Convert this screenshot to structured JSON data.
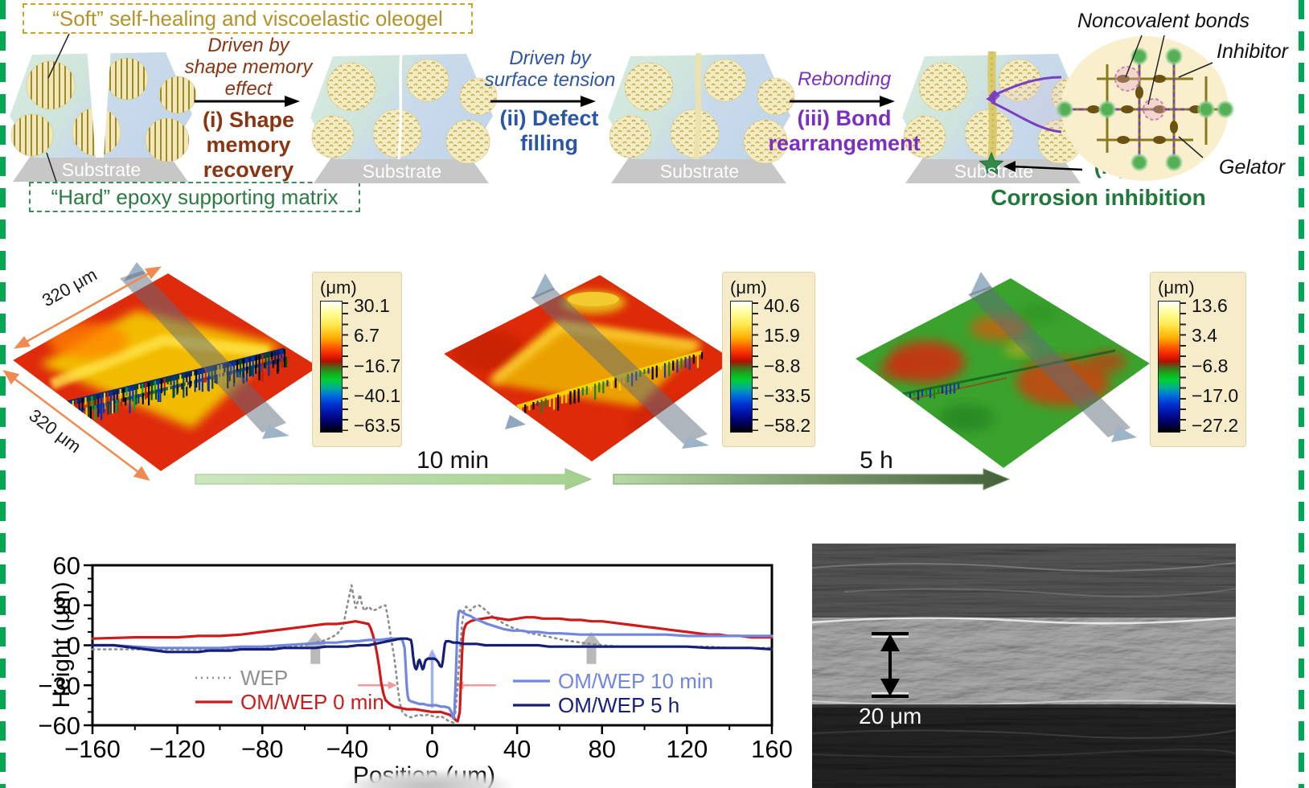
{
  "figure": {
    "border_color": "#00a651"
  },
  "schematic": {
    "soft_label": "“Soft” self-healing and viscoelastic oleogel",
    "hard_label": "“Hard” epoxy supporting matrix",
    "substrate_label": "Substrate",
    "steps": [
      {
        "driver": "Driven by shape memory effect",
        "name": "(i) Shape memory recovery",
        "color": "#8a3512"
      },
      {
        "driver": "Driven by surface tension",
        "name": "(ii) Defect filling",
        "color": "#2b55a5"
      },
      {
        "driver": "Rebonding",
        "name": "(iii) Bond rearrangement",
        "color": "#7a2fc0"
      }
    ],
    "step4_num": "(iv)",
    "step4_name": "Corrosion inhibition",
    "inset": {
      "noncovalent": "Noncovalent bonds",
      "inhibitor": "Inhibitor",
      "gelator": "Gelator"
    }
  },
  "profilometry": {
    "dimension_labels": [
      "320 μm",
      "320 μm"
    ],
    "unit": "(μm)",
    "colorbars": [
      {
        "ticks": [
          "30.1",
          "6.7",
          "−16.7",
          "−40.1",
          "−63.5"
        ]
      },
      {
        "ticks": [
          "40.6",
          "15.9",
          "−8.8",
          "−33.5",
          "−58.2"
        ]
      },
      {
        "ticks": [
          "13.6",
          "3.4",
          "−6.8",
          "−17.0",
          "−27.2"
        ]
      }
    ],
    "time_arrows": [
      "10 min",
      "5 h"
    ]
  },
  "sem": {
    "scale_label": "20 μm"
  },
  "chart_data": {
    "type": "line",
    "title": "",
    "xlabel": "Position (μm)",
    "ylabel": "Height (μm)",
    "xlim": [
      -160,
      160
    ],
    "ylim": [
      -60,
      60
    ],
    "xticks": [
      -160,
      -120,
      -80,
      -40,
      0,
      40,
      80,
      120,
      160
    ],
    "yticks": [
      -60,
      -30,
      0,
      30,
      60
    ],
    "x_minor_step": 20,
    "y_minor_step": 10,
    "grid": false,
    "legend_position": "inside-bottom",
    "series": [
      {
        "name": "WEP",
        "color": "#8c8c8c",
        "style": "dotted",
        "points": [
          [
            -160,
            -3
          ],
          [
            -140,
            -3
          ],
          [
            -120,
            -3
          ],
          [
            -100,
            -3
          ],
          [
            -80,
            -2
          ],
          [
            -70,
            -1
          ],
          [
            -60,
            0
          ],
          [
            -55,
            2
          ],
          [
            -50,
            4
          ],
          [
            -45,
            8
          ],
          [
            -42,
            14
          ],
          [
            -40,
            30
          ],
          [
            -38,
            45
          ],
          [
            -37,
            36
          ],
          [
            -36,
            28
          ],
          [
            -35,
            33
          ],
          [
            -34,
            38
          ],
          [
            -33,
            30
          ],
          [
            -32,
            26
          ],
          [
            -30,
            29
          ],
          [
            -28,
            26
          ],
          [
            -26,
            27
          ],
          [
            -24,
            29
          ],
          [
            -22,
            30
          ],
          [
            -21,
            22
          ],
          [
            -20,
            12
          ],
          [
            -19,
            2
          ],
          [
            -18,
            -8
          ],
          [
            -17,
            -20
          ],
          [
            -16,
            -35
          ],
          [
            -15,
            -45
          ],
          [
            -14,
            -50
          ],
          [
            -12,
            -53
          ],
          [
            -10,
            -54
          ],
          [
            -8,
            -53
          ],
          [
            -6,
            -52
          ],
          [
            -4,
            -53
          ],
          [
            -2,
            -52
          ],
          [
            0,
            -53
          ],
          [
            2,
            -54
          ],
          [
            4,
            -53
          ],
          [
            6,
            -55
          ],
          [
            8,
            -57
          ],
          [
            10,
            -58
          ],
          [
            11,
            -50
          ],
          [
            12,
            -30
          ],
          [
            13,
            -5
          ],
          [
            14,
            15
          ],
          [
            15,
            26
          ],
          [
            16,
            29
          ],
          [
            17,
            27
          ],
          [
            18,
            26
          ],
          [
            20,
            29
          ],
          [
            22,
            30
          ],
          [
            24,
            28
          ],
          [
            26,
            25
          ],
          [
            28,
            22
          ],
          [
            30,
            20
          ],
          [
            34,
            16
          ],
          [
            38,
            13
          ],
          [
            42,
            11
          ],
          [
            46,
            9
          ],
          [
            50,
            8
          ],
          [
            56,
            6
          ],
          [
            62,
            4
          ],
          [
            70,
            2
          ],
          [
            80,
            0
          ],
          [
            90,
            -1
          ],
          [
            100,
            -1
          ],
          [
            110,
            -1
          ],
          [
            120,
            -1
          ],
          [
            130,
            -1
          ],
          [
            140,
            -2
          ],
          [
            150,
            -2
          ],
          [
            160,
            -2
          ]
        ]
      },
      {
        "name": "OM/WEP 0 min",
        "color": "#cf1a1a",
        "style": "solid",
        "points": [
          [
            -160,
            5
          ],
          [
            -140,
            6
          ],
          [
            -120,
            6
          ],
          [
            -110,
            7
          ],
          [
            -100,
            7
          ],
          [
            -90,
            8
          ],
          [
            -80,
            10
          ],
          [
            -70,
            12
          ],
          [
            -60,
            14
          ],
          [
            -55,
            15
          ],
          [
            -50,
            16
          ],
          [
            -45,
            16
          ],
          [
            -40,
            17
          ],
          [
            -36,
            18
          ],
          [
            -33,
            17
          ],
          [
            -30,
            16
          ],
          [
            -29,
            13
          ],
          [
            -28,
            8
          ],
          [
            -27,
            2
          ],
          [
            -26,
            -6
          ],
          [
            -25,
            -16
          ],
          [
            -24,
            -28
          ],
          [
            -23,
            -36
          ],
          [
            -22,
            -41
          ],
          [
            -20,
            -44
          ],
          [
            -18,
            -46
          ],
          [
            -15,
            -47
          ],
          [
            -12,
            -48
          ],
          [
            -8,
            -48
          ],
          [
            -4,
            -49
          ],
          [
            0,
            -50
          ],
          [
            4,
            -50
          ],
          [
            6,
            -51
          ],
          [
            8,
            -52
          ],
          [
            10,
            -54
          ],
          [
            11,
            -56
          ],
          [
            12,
            -57
          ],
          [
            13,
            -50
          ],
          [
            13.5,
            -30
          ],
          [
            14,
            -8
          ],
          [
            14.5,
            6
          ],
          [
            15,
            12
          ],
          [
            16,
            16
          ],
          [
            18,
            18
          ],
          [
            20,
            19
          ],
          [
            24,
            20
          ],
          [
            28,
            21
          ],
          [
            32,
            20
          ],
          [
            36,
            19
          ],
          [
            40,
            20
          ],
          [
            44,
            21
          ],
          [
            48,
            21
          ],
          [
            52,
            20
          ],
          [
            56,
            20
          ],
          [
            60,
            20
          ],
          [
            65,
            19
          ],
          [
            70,
            19
          ],
          [
            75,
            18
          ],
          [
            80,
            18
          ],
          [
            85,
            17
          ],
          [
            90,
            16
          ],
          [
            95,
            15
          ],
          [
            100,
            14
          ],
          [
            105,
            13
          ],
          [
            110,
            12
          ],
          [
            115,
            11
          ],
          [
            120,
            10
          ],
          [
            125,
            9
          ],
          [
            130,
            8
          ],
          [
            135,
            8
          ],
          [
            140,
            7
          ],
          [
            145,
            7
          ],
          [
            150,
            6
          ],
          [
            155,
            6
          ],
          [
            160,
            6
          ]
        ]
      },
      {
        "name": "OM/WEP 10 min",
        "color": "#7186e0",
        "style": "solid",
        "points": [
          [
            -160,
            0
          ],
          [
            -150,
            0
          ],
          [
            -140,
            -1
          ],
          [
            -130,
            -2
          ],
          [
            -120,
            -2
          ],
          [
            -110,
            -2
          ],
          [
            -100,
            -2
          ],
          [
            -90,
            -1
          ],
          [
            -80,
            -1
          ],
          [
            -70,
            0
          ],
          [
            -60,
            1
          ],
          [
            -50,
            2
          ],
          [
            -45,
            2
          ],
          [
            -40,
            3
          ],
          [
            -35,
            3
          ],
          [
            -30,
            4
          ],
          [
            -25,
            4
          ],
          [
            -20,
            5
          ],
          [
            -16,
            5
          ],
          [
            -14,
            4
          ],
          [
            -13,
            -2
          ],
          [
            -12.5,
            -15
          ],
          [
            -12,
            -30
          ],
          [
            -11.5,
            -38
          ],
          [
            -11,
            -41
          ],
          [
            -10,
            -42
          ],
          [
            -8,
            -43
          ],
          [
            -6,
            -44
          ],
          [
            -4,
            -44
          ],
          [
            -2,
            -45
          ],
          [
            0,
            -45
          ],
          [
            2,
            -45
          ],
          [
            4,
            -46
          ],
          [
            6,
            -46
          ],
          [
            8,
            -47
          ],
          [
            9,
            -50
          ],
          [
            9.5,
            -53
          ],
          [
            10,
            -55
          ],
          [
            10.5,
            -50
          ],
          [
            11,
            -30
          ],
          [
            11.5,
            -5
          ],
          [
            12,
            18
          ],
          [
            12.5,
            25
          ],
          [
            13,
            26
          ],
          [
            14,
            25
          ],
          [
            16,
            23
          ],
          [
            18,
            22
          ],
          [
            20,
            20
          ],
          [
            23,
            18
          ],
          [
            26,
            16
          ],
          [
            30,
            14
          ],
          [
            34,
            12
          ],
          [
            38,
            11
          ],
          [
            42,
            11
          ],
          [
            46,
            10
          ],
          [
            50,
            10
          ],
          [
            55,
            9
          ],
          [
            60,
            9
          ],
          [
            70,
            8
          ],
          [
            80,
            8
          ],
          [
            90,
            8
          ],
          [
            100,
            8
          ],
          [
            110,
            8
          ],
          [
            120,
            7
          ],
          [
            130,
            7
          ],
          [
            140,
            7
          ],
          [
            150,
            7
          ],
          [
            160,
            7
          ]
        ]
      },
      {
        "name": "OM/WEP 5 h",
        "color": "#141f7a",
        "style": "solid",
        "points": [
          [
            -160,
            0
          ],
          [
            -150,
            0
          ],
          [
            -145,
            -1
          ],
          [
            -140,
            -2
          ],
          [
            -135,
            -3
          ],
          [
            -130,
            -4
          ],
          [
            -125,
            -5
          ],
          [
            -120,
            -5
          ],
          [
            -115,
            -5
          ],
          [
            -110,
            -5
          ],
          [
            -105,
            -4
          ],
          [
            -100,
            -4
          ],
          [
            -95,
            -4
          ],
          [
            -90,
            -3
          ],
          [
            -85,
            -3
          ],
          [
            -80,
            -3
          ],
          [
            -75,
            -3
          ],
          [
            -70,
            -2
          ],
          [
            -65,
            -2
          ],
          [
            -60,
            -2
          ],
          [
            -55,
            -2
          ],
          [
            -50,
            -1
          ],
          [
            -45,
            -1
          ],
          [
            -40,
            -1
          ],
          [
            -35,
            0
          ],
          [
            -30,
            0
          ],
          [
            -27,
            1
          ],
          [
            -24,
            2
          ],
          [
            -21,
            3
          ],
          [
            -18,
            4
          ],
          [
            -15,
            5
          ],
          [
            -12,
            5
          ],
          [
            -10,
            4
          ],
          [
            -9.5,
            0
          ],
          [
            -9,
            -8
          ],
          [
            -8.5,
            -14
          ],
          [
            -8,
            -17
          ],
          [
            -7.5,
            -18
          ],
          [
            -7,
            -16
          ],
          [
            -6.5,
            -12
          ],
          [
            -6,
            -11
          ],
          [
            -5.5,
            -13
          ],
          [
            -5,
            -16
          ],
          [
            -4.5,
            -18
          ],
          [
            -4,
            -17
          ],
          [
            -3.5,
            -13
          ],
          [
            -3,
            -11
          ],
          [
            -2,
            -10
          ],
          [
            -1,
            -10
          ],
          [
            0,
            -10
          ],
          [
            1,
            -10
          ],
          [
            2,
            -11
          ],
          [
            3,
            -13
          ],
          [
            3.5,
            -15
          ],
          [
            4,
            -16
          ],
          [
            4.5,
            -16
          ],
          [
            5,
            -12
          ],
          [
            5.5,
            -5
          ],
          [
            6,
            1
          ],
          [
            6.5,
            3
          ],
          [
            7,
            3
          ],
          [
            8,
            3
          ],
          [
            10,
            2
          ],
          [
            12,
            2
          ],
          [
            15,
            1
          ],
          [
            18,
            1
          ],
          [
            21,
            1
          ],
          [
            25,
            0
          ],
          [
            30,
            0
          ],
          [
            35,
            0
          ],
          [
            40,
            0
          ],
          [
            45,
            0
          ],
          [
            50,
            0
          ],
          [
            55,
            -1
          ],
          [
            60,
            -1
          ],
          [
            70,
            -1
          ],
          [
            80,
            -1
          ],
          [
            90,
            -1
          ],
          [
            100,
            -1
          ],
          [
            110,
            -1
          ],
          [
            120,
            -1
          ],
          [
            130,
            -2
          ],
          [
            140,
            -2
          ],
          [
            150,
            -2
          ],
          [
            160,
            -3
          ]
        ]
      }
    ],
    "annotations": {
      "gray_up_arrows_x": [
        -55,
        75
      ],
      "width_arrow_y": -30,
      "width_arrow_left": [
        -35,
        -20
      ],
      "width_arrow_right": [
        14,
        30
      ],
      "center_up_arrow_x": 0
    }
  }
}
